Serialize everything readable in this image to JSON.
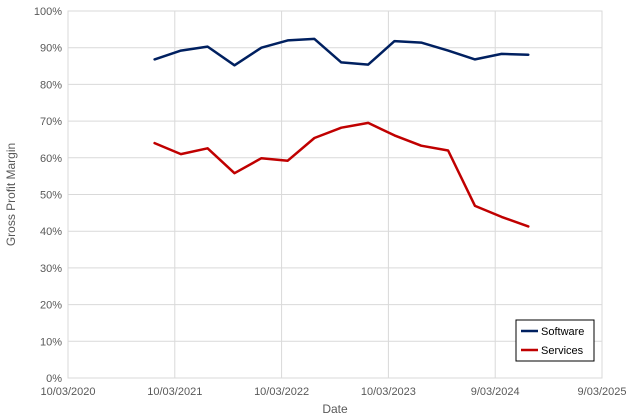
{
  "chart_data": {
    "type": "line",
    "title": "",
    "xlabel": "Date",
    "ylabel": "Gross Profit Margin",
    "x_axis": {
      "type": "date",
      "ticks": [
        "2020-03-10",
        "2021-03-10",
        "2022-03-10",
        "2023-03-10",
        "2024-03-09",
        "2025-03-09"
      ],
      "tick_labels": [
        "10/03/2020",
        "10/03/2021",
        "10/03/2022",
        "10/03/2023",
        "9/03/2024",
        "9/03/2025"
      ],
      "range": [
        "2020-03-10",
        "2025-03-09"
      ]
    },
    "y_axis": {
      "ticks": [
        0,
        10,
        20,
        30,
        40,
        50,
        60,
        70,
        80,
        90,
        100
      ],
      "tick_labels": [
        "0%",
        "10%",
        "20%",
        "30%",
        "40%",
        "50%",
        "60%",
        "70%",
        "80%",
        "90%",
        "100%"
      ],
      "range": [
        0,
        100
      ]
    },
    "grid": true,
    "legend_position": "bottom-right",
    "series": [
      {
        "name": "Software",
        "color": "#002060",
        "points": [
          {
            "x": "2020-12-31",
            "y": 86.8
          },
          {
            "x": "2021-03-31",
            "y": 89.2
          },
          {
            "x": "2021-06-30",
            "y": 90.3
          },
          {
            "x": "2021-09-30",
            "y": 85.2
          },
          {
            "x": "2021-12-31",
            "y": 90.0
          },
          {
            "x": "2022-03-31",
            "y": 92.0
          },
          {
            "x": "2022-06-30",
            "y": 92.4
          },
          {
            "x": "2022-09-30",
            "y": 86.0
          },
          {
            "x": "2022-12-31",
            "y": 85.4
          },
          {
            "x": "2023-03-31",
            "y": 91.8
          },
          {
            "x": "2023-06-30",
            "y": 91.4
          },
          {
            "x": "2023-09-30",
            "y": 89.2
          },
          {
            "x": "2023-12-31",
            "y": 86.8
          },
          {
            "x": "2024-03-31",
            "y": 88.3
          },
          {
            "x": "2024-06-30",
            "y": 88.1
          }
        ]
      },
      {
        "name": "Services",
        "color": "#C00000",
        "points": [
          {
            "x": "2020-12-31",
            "y": 64.0
          },
          {
            "x": "2021-03-31",
            "y": 61.0
          },
          {
            "x": "2021-06-30",
            "y": 62.6
          },
          {
            "x": "2021-09-30",
            "y": 55.8
          },
          {
            "x": "2021-12-31",
            "y": 59.9
          },
          {
            "x": "2022-03-31",
            "y": 59.2
          },
          {
            "x": "2022-06-30",
            "y": 65.4
          },
          {
            "x": "2022-09-30",
            "y": 68.2
          },
          {
            "x": "2022-12-31",
            "y": 69.5
          },
          {
            "x": "2023-03-31",
            "y": 66.1
          },
          {
            "x": "2023-06-30",
            "y": 63.3
          },
          {
            "x": "2023-09-30",
            "y": 62.0
          },
          {
            "x": "2023-12-31",
            "y": 46.9
          },
          {
            "x": "2024-03-31",
            "y": 43.9
          },
          {
            "x": "2024-06-30",
            "y": 41.3
          }
        ]
      }
    ]
  }
}
